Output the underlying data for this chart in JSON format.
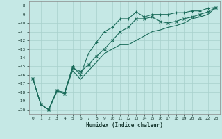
{
  "title": "",
  "xlabel": "Humidex (Indice chaleur)",
  "ylabel": "",
  "background_color": "#c5e8e5",
  "grid_color": "#a8d0cc",
  "line_color": "#1a6b5a",
  "xlim": [
    -0.5,
    23.5
  ],
  "ylim": [
    -20.5,
    -7.5
  ],
  "x_ticks": [
    0,
    1,
    2,
    3,
    4,
    5,
    6,
    7,
    8,
    9,
    10,
    11,
    12,
    13,
    14,
    15,
    16,
    17,
    18,
    19,
    20,
    21,
    22,
    23
  ],
  "y_ticks": [
    -8,
    -9,
    -10,
    -11,
    -12,
    -13,
    -14,
    -15,
    -16,
    -17,
    -18,
    -19,
    -20
  ],
  "series": [
    {
      "x": [
        0,
        1,
        2,
        3,
        4,
        5,
        6,
        7,
        8,
        9,
        10,
        11,
        12,
        13,
        14,
        15,
        16,
        17,
        18,
        19,
        20,
        21,
        22,
        23
      ],
      "y": [
        -16.4,
        -19.4,
        -20.0,
        -17.8,
        -18.0,
        -15.0,
        -16.0,
        -13.5,
        -12.2,
        -11.0,
        -10.5,
        -9.5,
        -9.5,
        -8.7,
        -9.3,
        -9.0,
        -9.0,
        -9.0,
        -8.8,
        -8.8,
        -8.6,
        -8.6,
        -8.3,
        -8.2
      ],
      "marker": "+"
    },
    {
      "x": [
        0,
        1,
        2,
        3,
        4,
        5,
        6,
        7,
        8,
        9,
        10,
        11,
        12,
        13,
        14,
        15,
        16,
        17,
        18,
        19,
        20,
        21,
        22,
        23
      ],
      "y": [
        -16.4,
        -19.4,
        -20.0,
        -17.8,
        -18.2,
        -15.2,
        -15.6,
        -14.8,
        -13.8,
        -13.0,
        -12.0,
        -11.0,
        -10.5,
        -9.5,
        -9.5,
        -9.3,
        -9.8,
        -10.0,
        -9.8,
        -9.5,
        -9.3,
        -9.0,
        -8.7,
        -8.2
      ],
      "marker": "x"
    },
    {
      "x": [
        0,
        1,
        2,
        3,
        4,
        5,
        6,
        7,
        8,
        9,
        10,
        11,
        12,
        13,
        14,
        15,
        16,
        17,
        18,
        19,
        20,
        21,
        22,
        23
      ],
      "y": [
        -16.4,
        -19.4,
        -20.0,
        -18.0,
        -18.0,
        -15.5,
        -16.5,
        -15.5,
        -14.5,
        -13.5,
        -13.0,
        -12.5,
        -12.5,
        -12.0,
        -11.5,
        -11.0,
        -10.8,
        -10.5,
        -10.3,
        -10.0,
        -9.5,
        -9.3,
        -9.0,
        -8.2
      ],
      "marker": null
    }
  ]
}
